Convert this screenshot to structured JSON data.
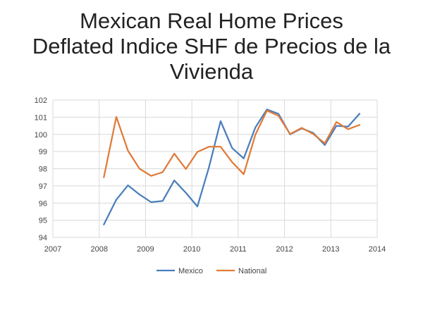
{
  "chart_data": {
    "type": "line",
    "title_lines": [
      "Mexican Real Home Prices",
      "Deflated Indice SHF de Precios de la",
      "Vivienda"
    ],
    "xlabel": "",
    "ylabel": "",
    "xlim": [
      2007,
      2014
    ],
    "ylim": [
      94,
      102
    ],
    "x_ticks": [
      2007,
      2008,
      2009,
      2010,
      2011,
      2012,
      2013,
      2014
    ],
    "y_ticks": [
      94,
      95,
      96,
      97,
      98,
      99,
      100,
      101,
      102
    ],
    "grid": true,
    "legend_position": "bottom",
    "series": [
      {
        "name": "Mexico",
        "color": "#4a7ebb",
        "points": [
          [
            2008.1,
            94.75
          ],
          [
            2008.37,
            96.2
          ],
          [
            2008.62,
            97.03
          ],
          [
            2008.87,
            96.5
          ],
          [
            2009.12,
            96.05
          ],
          [
            2009.37,
            96.12
          ],
          [
            2009.62,
            97.32
          ],
          [
            2009.87,
            96.6
          ],
          [
            2010.12,
            95.8
          ],
          [
            2010.37,
            98.1
          ],
          [
            2010.62,
            100.77
          ],
          [
            2010.87,
            99.2
          ],
          [
            2011.12,
            98.6
          ],
          [
            2011.37,
            100.4
          ],
          [
            2011.62,
            101.45
          ],
          [
            2011.87,
            101.2
          ],
          [
            2012.12,
            100.0
          ],
          [
            2012.37,
            100.35
          ],
          [
            2012.62,
            100.08
          ],
          [
            2012.87,
            99.38
          ],
          [
            2013.12,
            100.5
          ],
          [
            2013.37,
            100.45
          ],
          [
            2013.62,
            101.2
          ]
        ]
      },
      {
        "name": "National",
        "color": "#e07b39",
        "points": [
          [
            2008.1,
            97.5
          ],
          [
            2008.37,
            101.02
          ],
          [
            2008.62,
            99.05
          ],
          [
            2008.87,
            98.0
          ],
          [
            2009.12,
            97.58
          ],
          [
            2009.37,
            97.8
          ],
          [
            2009.62,
            98.88
          ],
          [
            2009.87,
            97.98
          ],
          [
            2010.12,
            98.98
          ],
          [
            2010.37,
            99.28
          ],
          [
            2010.62,
            99.28
          ],
          [
            2010.87,
            98.38
          ],
          [
            2011.12,
            97.68
          ],
          [
            2011.37,
            99.98
          ],
          [
            2011.62,
            101.38
          ],
          [
            2011.87,
            101.08
          ],
          [
            2012.12,
            100.02
          ],
          [
            2012.37,
            100.38
          ],
          [
            2012.62,
            100.02
          ],
          [
            2012.87,
            99.48
          ],
          [
            2013.12,
            100.72
          ],
          [
            2013.37,
            100.3
          ],
          [
            2013.62,
            100.55
          ]
        ]
      }
    ]
  }
}
